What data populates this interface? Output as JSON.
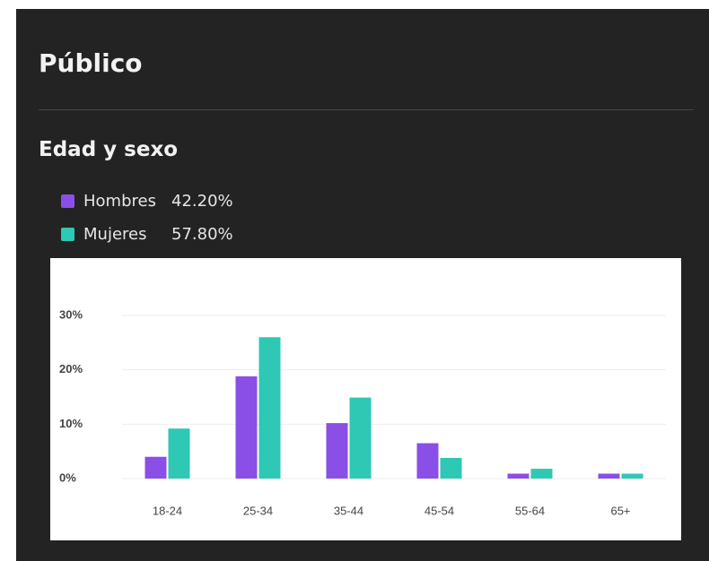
{
  "header": {
    "title": "Público"
  },
  "section": {
    "title": "Edad y sexo"
  },
  "chart_data": {
    "type": "bar",
    "categories": [
      "18-24",
      "25-34",
      "35-44",
      "45-54",
      "55-64",
      "65+"
    ],
    "series": [
      {
        "name": "Hombres",
        "share": "42.20%",
        "color": "#8a4fe6",
        "values": [
          4,
          18.8,
          10.2,
          6.5,
          0.9,
          0.9
        ]
      },
      {
        "name": "Mujeres",
        "share": "57.80%",
        "color": "#2fc8b4",
        "values": [
          9.2,
          26,
          14.9,
          3.8,
          1.8,
          0.9
        ]
      }
    ],
    "ylim": [
      0,
      30
    ],
    "yticks": [
      {
        "value": 0,
        "label": "0%"
      },
      {
        "value": 10,
        "label": "10%"
      },
      {
        "value": 20,
        "label": "20%"
      },
      {
        "value": 30,
        "label": "30%"
      }
    ],
    "grid": true
  }
}
